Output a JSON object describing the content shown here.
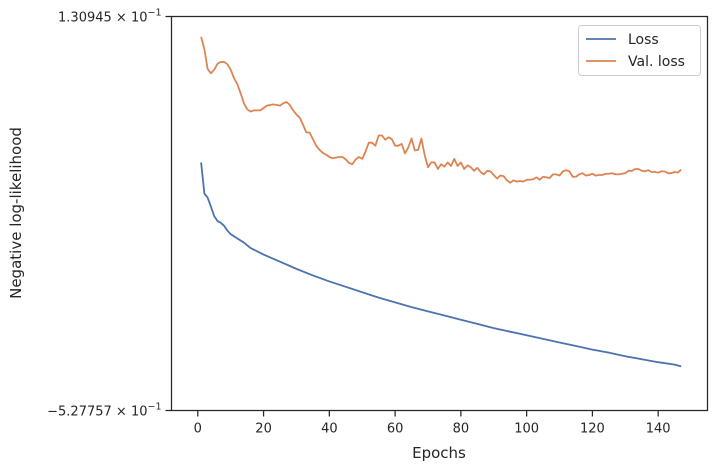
{
  "chart_data": {
    "type": "line",
    "xlabel": "Epochs",
    "ylabel": "Negative log-likelihood",
    "xlim": [
      -8,
      155
    ],
    "ylim": [
      -0.527757,
      0.130945
    ],
    "y_scale": "symlog",
    "grid": false,
    "legend_position": "top-right",
    "x_ticks": [
      0,
      20,
      40,
      60,
      80,
      100,
      120,
      140
    ],
    "x_tick_labels": [
      "0",
      "20",
      "40",
      "60",
      "80",
      "100",
      "120",
      "140"
    ],
    "y_tick_labels": [
      {
        "mantissa": "−5.27757",
        "base": "10",
        "exponent": "−1"
      },
      {
        "mantissa": "1.30945",
        "base": "10",
        "exponent": "−1"
      }
    ],
    "series": [
      {
        "name": "Loss",
        "color": "#4c72b0",
        "points": [
          [
            1,
            -0.113
          ],
          [
            2,
            -0.165
          ],
          [
            3,
            -0.172
          ],
          [
            4,
            -0.187
          ],
          [
            5,
            -0.203
          ],
          [
            6,
            -0.211
          ],
          [
            7,
            -0.214
          ],
          [
            8,
            -0.219
          ],
          [
            9,
            -0.227
          ],
          [
            10,
            -0.233
          ],
          [
            12,
            -0.24
          ],
          [
            14,
            -0.247
          ],
          [
            16,
            -0.256
          ],
          [
            20,
            -0.267
          ],
          [
            25,
            -0.279
          ],
          [
            30,
            -0.291
          ],
          [
            35,
            -0.302
          ],
          [
            40,
            -0.312
          ],
          [
            45,
            -0.321
          ],
          [
            50,
            -0.33
          ],
          [
            55,
            -0.339
          ],
          [
            60,
            -0.347
          ],
          [
            65,
            -0.355
          ],
          [
            70,
            -0.362
          ],
          [
            75,
            -0.369
          ],
          [
            80,
            -0.376
          ],
          [
            85,
            -0.383
          ],
          [
            90,
            -0.39
          ],
          [
            95,
            -0.396
          ],
          [
            100,
            -0.402
          ],
          [
            105,
            -0.408
          ],
          [
            110,
            -0.414
          ],
          [
            115,
            -0.42
          ],
          [
            120,
            -0.426
          ],
          [
            125,
            -0.431
          ],
          [
            130,
            -0.437
          ],
          [
            135,
            -0.442
          ],
          [
            140,
            -0.447
          ],
          [
            145,
            -0.451
          ],
          [
            147,
            -0.454
          ]
        ]
      },
      {
        "name": "Val. loss",
        "color": "#dd8452",
        "points": [
          [
            1,
            0.097
          ],
          [
            2,
            0.076
          ],
          [
            3,
            0.043
          ],
          [
            4,
            0.036
          ],
          [
            5,
            0.042
          ],
          [
            6,
            0.052
          ],
          [
            7,
            0.055
          ],
          [
            8,
            0.055
          ],
          [
            9,
            0.051
          ],
          [
            10,
            0.042
          ],
          [
            11,
            0.028
          ],
          [
            12,
            0.018
          ],
          [
            13,
            0.003
          ],
          [
            14,
            -0.014
          ],
          [
            15,
            -0.024
          ],
          [
            16,
            -0.028
          ],
          [
            17,
            -0.026
          ],
          [
            18,
            -0.026
          ],
          [
            19,
            -0.026
          ],
          [
            20,
            -0.022
          ],
          [
            21,
            -0.018
          ],
          [
            23,
            -0.016
          ],
          [
            25,
            -0.018
          ],
          [
            26,
            -0.014
          ],
          [
            27,
            -0.012
          ],
          [
            28,
            -0.017
          ],
          [
            29,
            -0.026
          ],
          [
            30,
            -0.033
          ],
          [
            31,
            -0.038
          ],
          [
            32,
            -0.05
          ],
          [
            33,
            -0.063
          ],
          [
            34,
            -0.063
          ],
          [
            35,
            -0.074
          ],
          [
            36,
            -0.085
          ],
          [
            37,
            -0.092
          ],
          [
            38,
            -0.097
          ],
          [
            39,
            -0.1
          ],
          [
            40,
            -0.104
          ],
          [
            41,
            -0.106
          ],
          [
            42,
            -0.105
          ],
          [
            43,
            -0.104
          ],
          [
            44,
            -0.104
          ],
          [
            45,
            -0.108
          ],
          [
            46,
            -0.114
          ],
          [
            47,
            -0.116
          ],
          [
            48,
            -0.108
          ],
          [
            49,
            -0.104
          ],
          [
            50,
            -0.107
          ],
          [
            51,
            -0.095
          ],
          [
            52,
            -0.08
          ],
          [
            53,
            -0.08
          ],
          [
            54,
            -0.085
          ],
          [
            55,
            -0.068
          ],
          [
            56,
            -0.068
          ],
          [
            57,
            -0.075
          ],
          [
            58,
            -0.071
          ],
          [
            59,
            -0.074
          ],
          [
            60,
            -0.085
          ],
          [
            61,
            -0.085
          ],
          [
            62,
            -0.082
          ],
          [
            63,
            -0.098
          ],
          [
            64,
            -0.088
          ],
          [
            65,
            -0.073
          ],
          [
            66,
            -0.093
          ],
          [
            67,
            -0.092
          ],
          [
            68,
            -0.073
          ],
          [
            69,
            -0.101
          ],
          [
            70,
            -0.121
          ],
          [
            71,
            -0.113
          ],
          [
            72,
            -0.113
          ],
          [
            73,
            -0.124
          ],
          [
            74,
            -0.116
          ],
          [
            75,
            -0.12
          ],
          [
            76,
            -0.113
          ],
          [
            77,
            -0.119
          ],
          [
            78,
            -0.107
          ],
          [
            79,
            -0.119
          ],
          [
            80,
            -0.113
          ],
          [
            81,
            -0.124
          ],
          [
            82,
            -0.118
          ],
          [
            83,
            -0.121
          ],
          [
            84,
            -0.127
          ],
          [
            85,
            -0.122
          ],
          [
            86,
            -0.129
          ],
          [
            87,
            -0.133
          ],
          [
            88,
            -0.127
          ],
          [
            89,
            -0.128
          ],
          [
            90,
            -0.134
          ],
          [
            91,
            -0.14
          ],
          [
            92,
            -0.135
          ],
          [
            93,
            -0.136
          ],
          [
            94,
            -0.143
          ],
          [
            95,
            -0.147
          ],
          [
            96,
            -0.143
          ],
          [
            97,
            -0.145
          ],
          [
            98,
            -0.144
          ],
          [
            99,
            -0.145
          ],
          [
            100,
            -0.142
          ],
          [
            101,
            -0.142
          ],
          [
            102,
            -0.141
          ],
          [
            103,
            -0.138
          ],
          [
            104,
            -0.142
          ],
          [
            105,
            -0.137
          ],
          [
            106,
            -0.138
          ],
          [
            107,
            -0.139
          ],
          [
            108,
            -0.133
          ],
          [
            109,
            -0.133
          ],
          [
            110,
            -0.135
          ],
          [
            111,
            -0.128
          ],
          [
            112,
            -0.126
          ],
          [
            113,
            -0.128
          ],
          [
            114,
            -0.137
          ],
          [
            115,
            -0.137
          ],
          [
            116,
            -0.133
          ],
          [
            117,
            -0.131
          ],
          [
            118,
            -0.135
          ],
          [
            119,
            -0.134
          ],
          [
            120,
            -0.132
          ],
          [
            121,
            -0.135
          ],
          [
            122,
            -0.134
          ],
          [
            123,
            -0.134
          ],
          [
            124,
            -0.132
          ],
          [
            125,
            -0.132
          ],
          [
            126,
            -0.131
          ],
          [
            127,
            -0.133
          ],
          [
            128,
            -0.133
          ],
          [
            129,
            -0.132
          ],
          [
            130,
            -0.131
          ],
          [
            131,
            -0.127
          ],
          [
            132,
            -0.127
          ],
          [
            133,
            -0.124
          ],
          [
            134,
            -0.124
          ],
          [
            135,
            -0.127
          ],
          [
            136,
            -0.128
          ],
          [
            137,
            -0.126
          ],
          [
            138,
            -0.129
          ],
          [
            139,
            -0.129
          ],
          [
            140,
            -0.13
          ],
          [
            141,
            -0.128
          ],
          [
            142,
            -0.128
          ],
          [
            143,
            -0.131
          ],
          [
            144,
            -0.131
          ],
          [
            145,
            -0.129
          ],
          [
            146,
            -0.13
          ],
          [
            147,
            -0.125
          ]
        ]
      }
    ]
  }
}
